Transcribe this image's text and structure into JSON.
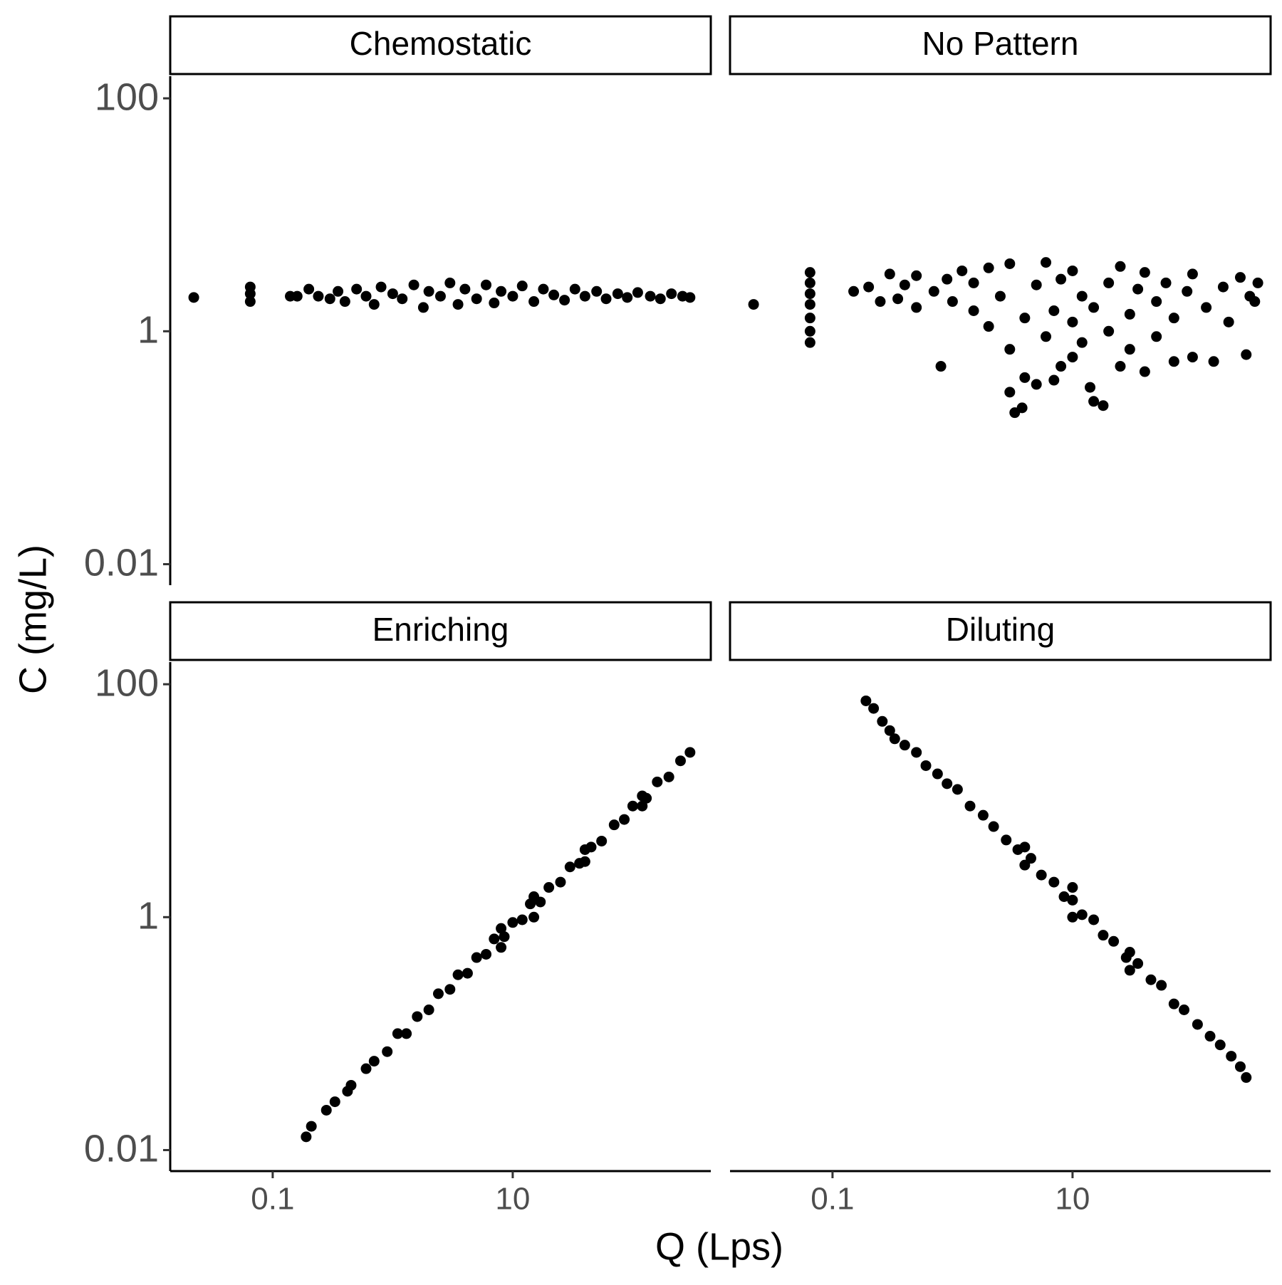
{
  "chart_data": {
    "type": "scatter",
    "x_label": "Q (Lps)",
    "y_label": "C (mg/L)",
    "x_log": true,
    "y_log": true,
    "color": "#000000",
    "xlim": [
      0.014,
      447
    ],
    "ylim": [
      0.0066,
      155
    ],
    "xticks": [
      0.1,
      10
    ],
    "yticks": [
      0.01,
      1,
      100
    ],
    "facets": [
      {
        "title": "Chemostatic",
        "x": [
          0.022,
          0.065,
          0.065,
          0.065,
          0.14,
          0.16,
          0.2,
          0.24,
          0.3,
          0.35,
          0.4,
          0.5,
          0.6,
          0.7,
          0.8,
          1,
          1.2,
          1.5,
          1.8,
          2,
          2.5,
          3,
          3.5,
          4,
          5,
          6,
          7,
          8,
          10,
          12,
          15,
          18,
          22,
          27,
          33,
          40,
          50,
          60,
          75,
          90,
          110,
          140,
          170,
          210,
          260,
          300
        ],
        "y": [
          1.95,
          1.8,
          2.1,
          2.4,
          2.0,
          2.0,
          2.3,
          2.0,
          1.9,
          2.2,
          1.8,
          2.3,
          2.0,
          1.7,
          2.4,
          2.1,
          1.9,
          2.5,
          1.6,
          2.2,
          2.0,
          2.6,
          1.7,
          2.3,
          1.9,
          2.5,
          1.75,
          2.2,
          2.0,
          2.45,
          1.8,
          2.3,
          2.05,
          1.85,
          2.3,
          2.0,
          2.2,
          1.9,
          2.1,
          1.95,
          2.15,
          2.0,
          1.9,
          2.1,
          2.0,
          1.95
        ]
      },
      {
        "title": "No Pattern",
        "x": [
          0.022,
          0.065,
          0.065,
          0.065,
          0.065,
          0.065,
          0.065,
          0.065,
          0.15,
          0.2,
          0.25,
          0.3,
          0.35,
          0.4,
          0.5,
          0.5,
          0.7,
          0.8,
          0.9,
          1,
          1.2,
          1.5,
          1.5,
          2,
          2,
          2.5,
          3,
          3,
          3,
          3.3,
          3.8,
          4,
          4,
          5,
          5,
          6,
          6,
          7,
          7,
          8,
          8,
          10,
          10,
          10,
          12,
          12,
          14,
          15,
          15,
          18,
          20,
          20,
          25,
          25,
          30,
          30,
          35,
          40,
          40,
          50,
          50,
          60,
          70,
          70,
          90,
          100,
          100,
          130,
          150,
          180,
          200,
          250,
          280,
          300,
          330,
          350
        ],
        "y": [
          1.7,
          0.8,
          1.0,
          1.3,
          1.7,
          2.1,
          2.6,
          3.2,
          2.2,
          2.4,
          1.8,
          3.1,
          1.9,
          2.5,
          1.6,
          3.0,
          2.2,
          0.5,
          2.8,
          1.8,
          3.3,
          1.5,
          2.6,
          1.1,
          3.5,
          2.0,
          0.7,
          0.3,
          3.8,
          0.2,
          0.22,
          1.3,
          0.4,
          2.5,
          0.35,
          3.9,
          0.9,
          1.5,
          0.38,
          0.5,
          2.8,
          0.6,
          1.2,
          3.3,
          0.8,
          2.0,
          0.33,
          1.6,
          0.25,
          0.23,
          2.6,
          1.0,
          0.5,
          3.6,
          1.4,
          0.7,
          2.3,
          0.45,
          3.2,
          1.8,
          0.9,
          2.6,
          1.3,
          0.55,
          2.2,
          0.6,
          3.1,
          1.6,
          0.55,
          2.4,
          1.2,
          2.9,
          0.63,
          2.0,
          1.8,
          2.6
        ]
      },
      {
        "title": "Enriching",
        "x": [
          0.19,
          0.21,
          0.28,
          0.33,
          0.42,
          0.45,
          0.6,
          0.7,
          0.9,
          1.1,
          1.3,
          1.6,
          2.0,
          2.4,
          3.0,
          3.5,
          4.2,
          5,
          6,
          7,
          8,
          8,
          8.5,
          10,
          12,
          14,
          15,
          15,
          17,
          20,
          25,
          30,
          36,
          40,
          40,
          45,
          55,
          70,
          85,
          100,
          120,
          120,
          130,
          160,
          200,
          250,
          300
        ],
        "y": [
          0.013,
          0.016,
          0.022,
          0.026,
          0.032,
          0.036,
          0.05,
          0.058,
          0.07,
          0.1,
          0.1,
          0.14,
          0.16,
          0.22,
          0.24,
          0.32,
          0.33,
          0.45,
          0.48,
          0.65,
          0.55,
          0.8,
          0.68,
          0.9,
          0.95,
          1.3,
          1.0,
          1.5,
          1.35,
          1.8,
          2.0,
          2.7,
          2.9,
          3.0,
          3.8,
          4.0,
          4.5,
          6.2,
          6.9,
          9.0,
          9.0,
          11,
          10.5,
          14.5,
          16,
          22,
          26
        ]
      },
      {
        "title": "Diluting",
        "x": [
          0.19,
          0.22,
          0.26,
          0.3,
          0.33,
          0.4,
          0.5,
          0.6,
          0.75,
          0.9,
          1.1,
          1.4,
          1.8,
          2.2,
          2.8,
          3.5,
          4,
          4,
          4.5,
          5.5,
          7,
          8.5,
          10,
          10,
          10,
          12,
          15,
          18,
          22,
          28,
          30,
          30,
          35,
          45,
          55,
          70,
          85,
          110,
          140,
          170,
          210,
          250,
          280
        ],
        "y": [
          72,
          62,
          48,
          40,
          34,
          30,
          26,
          20,
          17,
          14,
          12.5,
          9,
          7.5,
          6,
          4.6,
          3.8,
          2.8,
          4,
          3.2,
          2.3,
          2.0,
          1.5,
          1.4,
          1.0,
          1.8,
          1.05,
          0.95,
          0.7,
          0.62,
          0.45,
          0.35,
          0.5,
          0.4,
          0.29,
          0.26,
          0.18,
          0.16,
          0.12,
          0.095,
          0.08,
          0.064,
          0.052,
          0.042
        ]
      }
    ]
  }
}
